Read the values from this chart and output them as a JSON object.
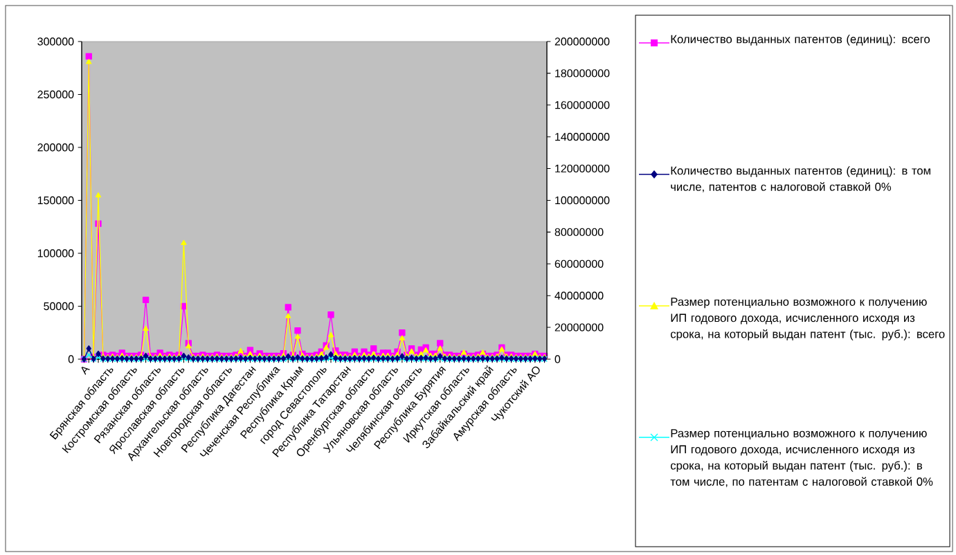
{
  "chart_data": {
    "type": "line",
    "categories": [
      "А",
      null,
      null,
      null,
      null,
      "Брянская область",
      null,
      null,
      null,
      null,
      "Костромская область",
      null,
      null,
      null,
      null,
      "Рязанская область",
      null,
      null,
      null,
      null,
      "Ярославская область",
      null,
      null,
      null,
      null,
      "Архангельская область",
      null,
      null,
      null,
      null,
      "Новгородская область",
      null,
      null,
      null,
      null,
      "Республика Дагестан",
      null,
      null,
      null,
      null,
      "Чеченская Республика",
      null,
      null,
      null,
      null,
      "Республика Крым",
      null,
      null,
      null,
      null,
      "город Севастополь",
      null,
      null,
      null,
      null,
      "Республика Татарстан",
      null,
      null,
      null,
      null,
      "Оренбургская область",
      null,
      null,
      null,
      null,
      "Ульяновская область",
      null,
      null,
      null,
      null,
      "Челябинская область",
      null,
      null,
      null,
      null,
      "Республика Бурятия",
      null,
      null,
      null,
      null,
      "Иркутская область",
      null,
      null,
      null,
      null,
      "Забайкальский край",
      null,
      null,
      null,
      null,
      "Амурская область",
      null,
      null,
      null,
      null,
      "Чукотский АО",
      null,
      null
    ],
    "series": [
      {
        "name": "Количество выданных патентов (единиц): всего",
        "color": "#ff00ff",
        "marker": "square",
        "values": [
          0,
          286000,
          2000,
          128000,
          4000,
          3000,
          4000,
          3000,
          6000,
          3000,
          3000,
          3000,
          4000,
          56000,
          3000,
          3000,
          6000,
          3000,
          4000,
          3000,
          4000,
          50000,
          15000,
          3000,
          3000,
          4000,
          3000,
          3000,
          4000,
          3000,
          3000,
          3000,
          4000,
          5000,
          3000,
          8500,
          3000,
          5200,
          3000,
          3000,
          3000,
          3000,
          5400,
          49000,
          4000,
          27000,
          5000,
          3000,
          3000,
          4000,
          7000,
          13000,
          42000,
          8000,
          4000,
          4000,
          3000,
          7000,
          3000,
          7000,
          4000,
          10000,
          3000,
          6000,
          6000,
          3000,
          7000,
          25000,
          4000,
          10000,
          4000,
          9000,
          11000,
          5000,
          5000,
          15000,
          4000,
          4000,
          3000,
          3000,
          5000,
          3000,
          3000,
          4000,
          5000,
          3000,
          3000,
          4000,
          11000,
          4000,
          4000,
          3000,
          3000,
          3000,
          3000,
          5000,
          3000,
          3000
        ]
      },
      {
        "name": "Количество выданных патентов (единиц): в том числе, патентов с налоговой ставкой 0%",
        "color": "#000080",
        "marker": "diamond",
        "values": [
          0,
          10000,
          200,
          5000,
          500,
          400,
          500,
          400,
          700,
          400,
          400,
          400,
          500,
          3000,
          400,
          400,
          600,
          400,
          500,
          400,
          500,
          3000,
          1500,
          400,
          400,
          500,
          400,
          400,
          500,
          400,
          400,
          400,
          500,
          800,
          400,
          1000,
          400,
          700,
          400,
          400,
          400,
          400,
          600,
          2500,
          500,
          1500,
          600,
          400,
          400,
          500,
          800,
          1500,
          4400,
          1000,
          500,
          500,
          400,
          800,
          400,
          800,
          500,
          1200,
          400,
          700,
          700,
          400,
          800,
          2600,
          500,
          1200,
          500,
          1000,
          1200,
          600,
          600,
          2600,
          500,
          500,
          400,
          400,
          600,
          400,
          400,
          500,
          600,
          400,
          400,
          500,
          1200,
          500,
          500,
          400,
          400,
          400,
          400,
          600,
          400,
          400
        ]
      },
      {
        "name": "Размер потенциально возможного к получению ИП годового дохода, исчисленного исходя из срока, на который выдан патент (тыс. руб.): всего",
        "color": "#ffff00",
        "marker": "triangle",
        "axis": "y2",
        "values": [
          0,
          187000000,
          1000000,
          103000000,
          1500000,
          1000000,
          1500000,
          1000000,
          2000000,
          1000000,
          1000000,
          1000000,
          1500000,
          19000000,
          1000000,
          1000000,
          2000000,
          1000000,
          1500000,
          1000000,
          1500000,
          73000000,
          8000000,
          1000000,
          1000000,
          1500000,
          1000000,
          1000000,
          1500000,
          1000000,
          1000000,
          1000000,
          1500000,
          5000000,
          1000000,
          3000000,
          1000000,
          2000000,
          1000000,
          1000000,
          1000000,
          1000000,
          2000000,
          27000000,
          1500000,
          14000000,
          2000000,
          1000000,
          1000000,
          1500000,
          3000000,
          7000000,
          15000000,
          3000000,
          1500000,
          1500000,
          1000000,
          2500000,
          1000000,
          2500000,
          1500000,
          3000000,
          1000000,
          2000000,
          2000000,
          1000000,
          2500000,
          13000000,
          1500000,
          4700000,
          1500000,
          3000000,
          5400000,
          2000000,
          2000000,
          6500000,
          1500000,
          1500000,
          1000000,
          1000000,
          4000000,
          1000000,
          1000000,
          1500000,
          4000000,
          1000000,
          1000000,
          1500000,
          6000000,
          1500000,
          1500000,
          1000000,
          1000000,
          1000000,
          1000000,
          3000000,
          1000000,
          1000000
        ]
      },
      {
        "name": "Размер потенциально возможного к получению ИП годового дохода, исчисленного исходя из срока, на который выдан патент (тыс. руб.): в том числе, по патентам с налоговой ставкой 0%",
        "color": "#00ffff",
        "marker": "cross",
        "axis": "y2",
        "values": [
          0,
          2600000,
          100000,
          1200000,
          100000,
          100000,
          100000,
          100000,
          200000,
          100000,
          100000,
          100000,
          100000,
          500000,
          100000,
          100000,
          200000,
          100000,
          100000,
          100000,
          100000,
          600000,
          300000,
          100000,
          100000,
          100000,
          100000,
          100000,
          100000,
          100000,
          100000,
          100000,
          100000,
          200000,
          100000,
          200000,
          100000,
          200000,
          100000,
          100000,
          100000,
          100000,
          100000,
          500000,
          100000,
          400000,
          200000,
          100000,
          100000,
          100000,
          200000,
          400000,
          1000000,
          200000,
          100000,
          100000,
          100000,
          200000,
          100000,
          200000,
          100000,
          300000,
          100000,
          200000,
          200000,
          100000,
          200000,
          500000,
          100000,
          300000,
          100000,
          200000,
          300000,
          100000,
          100000,
          500000,
          100000,
          100000,
          100000,
          100000,
          200000,
          100000,
          100000,
          100000,
          200000,
          100000,
          100000,
          100000,
          300000,
          100000,
          100000,
          100000,
          100000,
          100000,
          100000,
          200000,
          100000,
          100000
        ]
      }
    ],
    "ylim": [
      0,
      300000
    ],
    "yticks": [
      0,
      50000,
      100000,
      150000,
      200000,
      250000,
      300000
    ],
    "y2lim": [
      0,
      200000000
    ],
    "y2ticks": [
      0,
      20000000,
      40000000,
      60000000,
      80000000,
      100000000,
      120000000,
      140000000,
      160000000,
      180000000,
      200000000
    ],
    "legend": "right",
    "line_style": "solid"
  }
}
